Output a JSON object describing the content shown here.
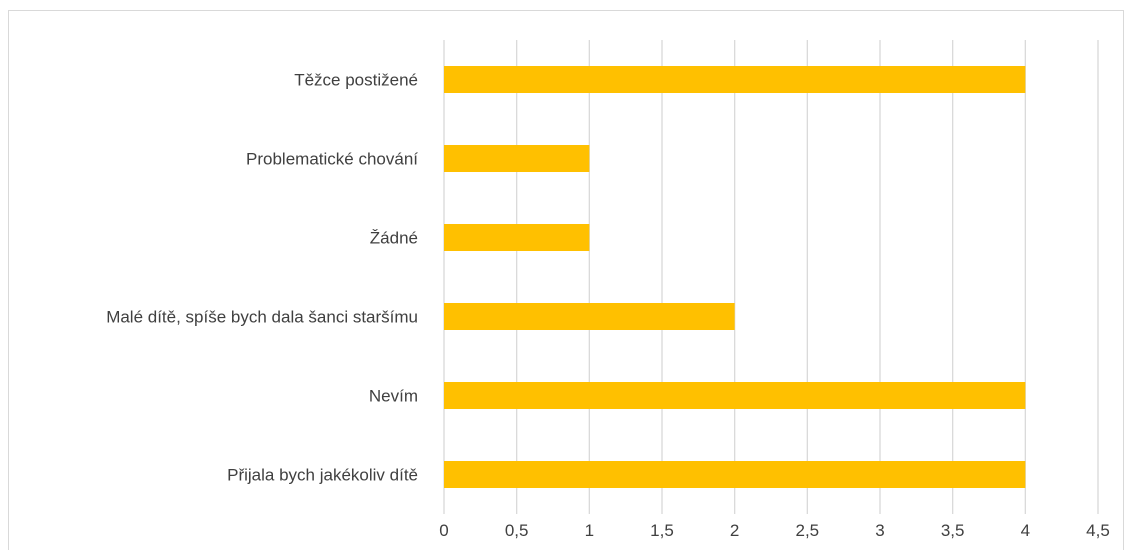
{
  "chart_data": {
    "type": "bar",
    "orientation": "horizontal",
    "categories": [
      "Přijala bych jakékoliv dítě",
      "Nevím",
      "Malé dítě, spíše bych dala šanci staršímu",
      "Žádné",
      "Problematické chování",
      "Těžce postižené"
    ],
    "values": [
      4,
      4,
      2,
      1,
      1,
      4
    ],
    "xlim": [
      0,
      4.5
    ],
    "x_ticks": [
      "0",
      "0,5",
      "1",
      "1,5",
      "2",
      "2,5",
      "3",
      "3,5",
      "4",
      "4,5"
    ],
    "grid": true,
    "bar_color": "#FFC000",
    "grid_color": "#d9d9d9",
    "title": "",
    "xlabel": "",
    "ylabel": ""
  }
}
